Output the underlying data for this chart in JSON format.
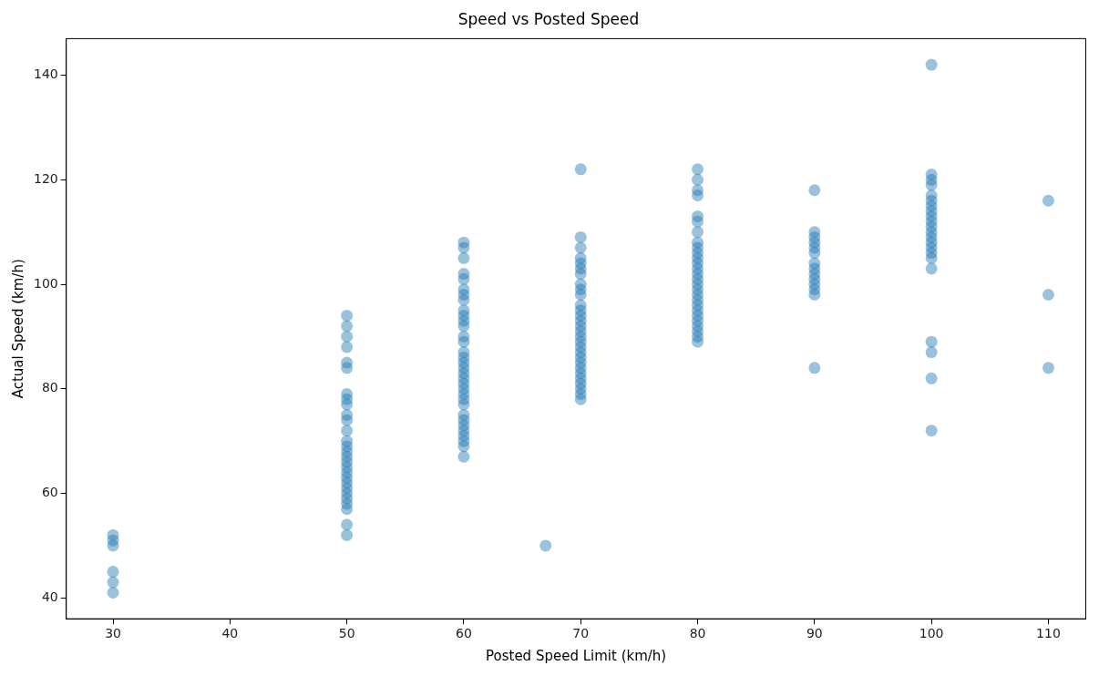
{
  "chart_data": {
    "type": "scatter",
    "title": "Speed vs Posted Speed",
    "xlabel": "Posted Speed Limit (km/h)",
    "ylabel": "Actual Speed (km/h)",
    "xlim": [
      26,
      113.2
    ],
    "ylim": [
      36,
      147
    ],
    "xticks": [
      30,
      40,
      50,
      60,
      70,
      80,
      90,
      100,
      110
    ],
    "yticks": [
      40,
      60,
      80,
      100,
      120,
      140
    ],
    "grid": false,
    "legend": false,
    "marker": "circle",
    "series": [
      {
        "color": "#1f77b4",
        "x": [
          30,
          30,
          30,
          30,
          30,
          30,
          50,
          50,
          50,
          50,
          50,
          50,
          50,
          50,
          50,
          50,
          50,
          50,
          50,
          50,
          50,
          50,
          50,
          50,
          50,
          50,
          50,
          50,
          50,
          50,
          50,
          50,
          50,
          50,
          60,
          60,
          60,
          60,
          60,
          60,
          60,
          60,
          60,
          60,
          60,
          60,
          60,
          60,
          60,
          60,
          60,
          60,
          60,
          60,
          60,
          60,
          60,
          60,
          60,
          60,
          60,
          60,
          60,
          60,
          60,
          60,
          60,
          67,
          70,
          70,
          70,
          70,
          70,
          70,
          70,
          70,
          70,
          70,
          70,
          70,
          70,
          70,
          70,
          70,
          70,
          70,
          70,
          70,
          70,
          70,
          70,
          70,
          70,
          70,
          70,
          70,
          70,
          80,
          80,
          80,
          80,
          80,
          80,
          80,
          80,
          80,
          80,
          80,
          80,
          80,
          80,
          80,
          80,
          80,
          80,
          80,
          80,
          80,
          80,
          80,
          80,
          80,
          80,
          80,
          90,
          90,
          90,
          90,
          90,
          90,
          90,
          90,
          90,
          90,
          90,
          90,
          90,
          90,
          100,
          100,
          100,
          100,
          100,
          100,
          100,
          100,
          100,
          100,
          100,
          100,
          100,
          100,
          100,
          100,
          100,
          100,
          100,
          100,
          100,
          100,
          110,
          110,
          110
        ],
        "values": [
          52,
          51,
          50,
          45,
          43,
          41,
          94,
          92,
          90,
          88,
          85,
          84,
          79,
          78,
          77,
          75,
          74,
          72,
          70,
          69,
          68,
          67,
          66,
          65,
          64,
          63,
          62,
          61,
          60,
          59,
          58,
          57,
          54,
          52,
          108,
          107,
          105,
          102,
          101,
          99,
          98,
          97,
          95,
          94,
          93,
          92,
          90,
          89,
          87,
          86,
          85,
          84,
          83,
          82,
          81,
          80,
          79,
          78,
          77,
          75,
          74,
          73,
          72,
          71,
          70,
          69,
          67,
          50,
          122,
          109,
          107,
          105,
          104,
          103,
          102,
          100,
          99,
          98,
          96,
          95,
          94,
          93,
          92,
          91,
          90,
          89,
          88,
          87,
          86,
          85,
          84,
          83,
          82,
          81,
          80,
          79,
          78,
          122,
          120,
          118,
          117,
          113,
          112,
          110,
          108,
          107,
          106,
          105,
          104,
          103,
          102,
          101,
          100,
          99,
          98,
          97,
          96,
          95,
          94,
          93,
          92,
          91,
          90,
          89,
          118,
          110,
          109,
          108,
          107,
          106,
          104,
          103,
          102,
          101,
          100,
          99,
          98,
          84,
          142,
          121,
          120,
          119,
          117,
          116,
          115,
          114,
          113,
          112,
          111,
          110,
          109,
          108,
          107,
          106,
          105,
          103,
          89,
          87,
          82,
          72,
          116,
          98,
          84
        ]
      }
    ]
  }
}
